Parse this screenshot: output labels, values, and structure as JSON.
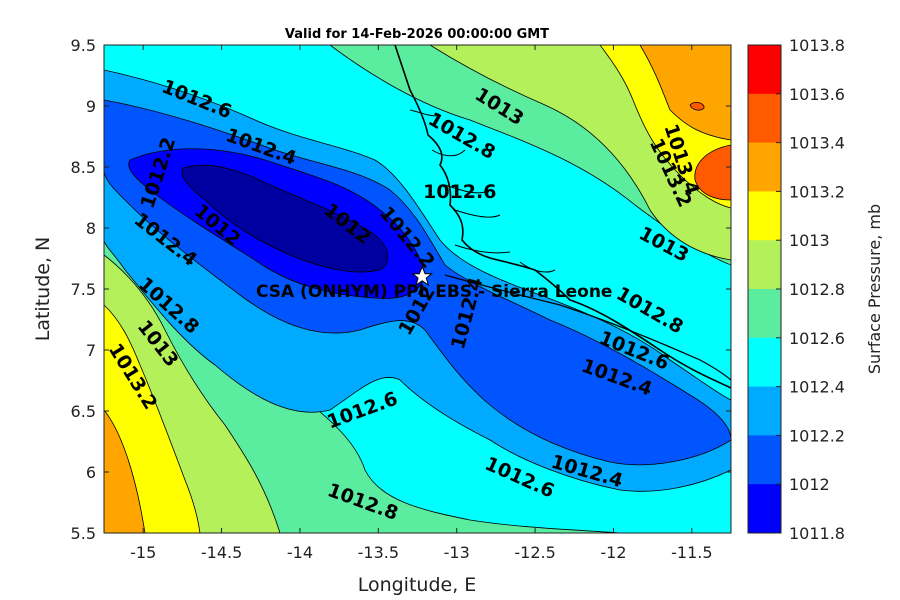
{
  "chart_data": {
    "type": "contour-map",
    "title": "Valid for 14-Feb-2026 00:00:00 GMT",
    "xlabel": "Longitude, E",
    "ylabel": "Latitude, N",
    "xlim": [
      -15.25,
      -11.25
    ],
    "ylim": [
      5.5,
      9.5
    ],
    "xticks": [
      {
        "value": -15,
        "label": "-15"
      },
      {
        "value": -14.5,
        "label": "-14.5"
      },
      {
        "value": -14,
        "label": "-14"
      },
      {
        "value": -13.5,
        "label": "-13.5"
      },
      {
        "value": -13,
        "label": "-13"
      },
      {
        "value": -12.5,
        "label": "-12.5"
      },
      {
        "value": -12,
        "label": "-12"
      },
      {
        "value": -11.5,
        "label": "-11.5"
      }
    ],
    "yticks": [
      {
        "value": 5.5,
        "label": "5.5"
      },
      {
        "value": 6,
        "label": "6"
      },
      {
        "value": 6.5,
        "label": "6.5"
      },
      {
        "value": 7,
        "label": "7"
      },
      {
        "value": 7.5,
        "label": "7.5"
      },
      {
        "value": 8,
        "label": "8"
      },
      {
        "value": 8.5,
        "label": "8.5"
      },
      {
        "value": 9,
        "label": "9"
      },
      {
        "value": 9.5,
        "label": "9.5"
      }
    ],
    "colorbar": {
      "title": "Surface Pressure, mb",
      "labels": [
        "1013.8",
        "1013.6",
        "1013.4",
        "1013.2",
        "1013",
        "1012.8",
        "1012.6",
        "1012.4",
        "1012.2",
        "1012",
        "1011.8"
      ],
      "colors": [
        "#ff0000",
        "#ff5a00",
        "#ffa500",
        "#ffff00",
        "#b4f05a",
        "#5aeda0",
        "#00ffff",
        "#00aaff",
        "#0055ff",
        "#0000ff",
        "#0000a0"
      ]
    },
    "contour_labels": [
      {
        "text": "1012.6",
        "lon": -14.66,
        "lat": 9.05,
        "angle": 22
      },
      {
        "text": "1012.4",
        "lon": -14.25,
        "lat": 8.66,
        "angle": 20
      },
      {
        "text": "1012.2",
        "lon": -14.9,
        "lat": 8.45,
        "angle": -72
      },
      {
        "text": "1012",
        "lon": -14.53,
        "lat": 8.02,
        "angle": 40
      },
      {
        "text": "1012",
        "lon": -13.7,
        "lat": 8.03,
        "angle": 38
      },
      {
        "text": "1012.2",
        "lon": -13.32,
        "lat": 7.92,
        "angle": 50
      },
      {
        "text": "1012.4",
        "lon": -14.86,
        "lat": 7.9,
        "angle": 38
      },
      {
        "text": "1012.8",
        "lon": -14.84,
        "lat": 7.36,
        "angle": 42
      },
      {
        "text": "1013",
        "lon": -14.91,
        "lat": 7.05,
        "angle": 52
      },
      {
        "text": "1013.2",
        "lon": -15.07,
        "lat": 6.78,
        "angle": 58
      },
      {
        "text": "1013",
        "lon": -12.73,
        "lat": 8.99,
        "angle": 32
      },
      {
        "text": "1012.8",
        "lon": -12.97,
        "lat": 8.75,
        "angle": 30
      },
      {
        "text": "1012.6",
        "lon": -12.98,
        "lat": 8.29,
        "angle": 0
      },
      {
        "text": "1013.2",
        "lon": -11.64,
        "lat": 8.45,
        "angle": 65
      },
      {
        "text": "1013.4",
        "lon": -11.57,
        "lat": 8.56,
        "angle": 72
      },
      {
        "text": "1013",
        "lon": -11.68,
        "lat": 7.86,
        "angle": 28
      },
      {
        "text": "1012.8",
        "lon": -11.77,
        "lat": 7.32,
        "angle": 30
      },
      {
        "text": "1012.6",
        "lon": -11.87,
        "lat": 6.99,
        "angle": 22
      },
      {
        "text": "1012.4",
        "lon": -11.98,
        "lat": 6.77,
        "angle": 20
      },
      {
        "text": "1012.4",
        "lon": -12.93,
        "lat": 7.3,
        "angle": -75
      },
      {
        "text": "1012",
        "lon": -13.25,
        "lat": 7.32,
        "angle": -60
      },
      {
        "text": "1012.6",
        "lon": -13.6,
        "lat": 6.5,
        "angle": -20
      },
      {
        "text": "1012.8",
        "lon": -13.6,
        "lat": 5.75,
        "angle": 20
      },
      {
        "text": "1012.6",
        "lon": -12.6,
        "lat": 5.95,
        "angle": 24
      },
      {
        "text": "1012.4",
        "lon": -12.17,
        "lat": 6.0,
        "angle": 16
      }
    ],
    "station": {
      "label": "CSA (ONHYM) PPL EBS - Sierra Leone",
      "lon": -13.22,
      "lat": 7.6,
      "marker": "star"
    }
  }
}
